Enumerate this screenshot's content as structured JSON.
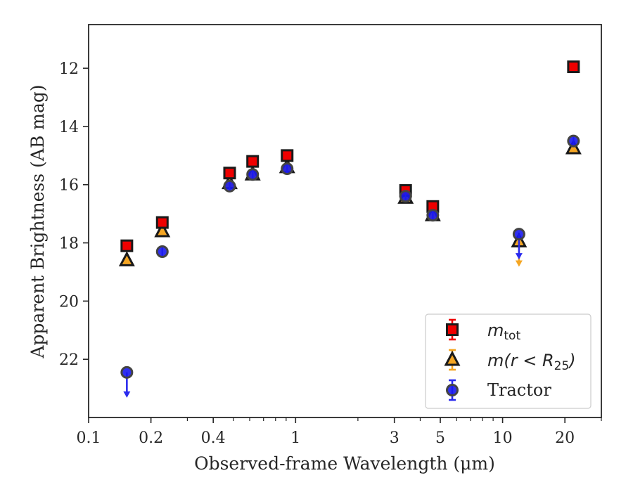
{
  "chart_data": {
    "type": "scatter",
    "xscale": "log",
    "yaxis_inverted": true,
    "xlim": [
      0.1,
      30
    ],
    "ylim": [
      24,
      10.5
    ],
    "xlabel": "Observed-frame Wavelength (μm)",
    "ylabel": "Apparent Brightness (AB mag)",
    "x_ticks": [
      0.1,
      0.2,
      0.4,
      1,
      3,
      5,
      10,
      20
    ],
    "x_tick_labels": [
      "0.1",
      "0.2",
      "0.4",
      "1",
      "3",
      "5",
      "10",
      "20"
    ],
    "y_ticks": [
      12,
      14,
      16,
      18,
      20,
      22
    ],
    "y_tick_labels": [
      "12",
      "14",
      "16",
      "18",
      "20",
      "22"
    ],
    "legend_position": "lower right",
    "series": [
      {
        "name": "m_tot",
        "label_main": "m",
        "label_sub": "tot",
        "marker": "square",
        "fill": "#ee0000",
        "edge": "#1a1a1a",
        "errcolor": "#ee0000",
        "x": [
          0.153,
          0.227,
          0.48,
          0.62,
          0.91,
          3.4,
          4.6,
          22.0
        ],
        "y": [
          18.1,
          17.3,
          15.6,
          15.2,
          15.0,
          16.2,
          16.75,
          11.95
        ]
      },
      {
        "name": "m(r < R25)",
        "label_main": "m(r < R",
        "label_sub": "25",
        "label_end": ")",
        "marker": "triangle",
        "fill": "#f5a623",
        "edge": "#1a1a1a",
        "errcolor": "#f5a623",
        "x": [
          0.153,
          0.227,
          0.48,
          0.62,
          0.91,
          3.4,
          4.6,
          12.0,
          22.0
        ],
        "y": [
          18.6,
          17.6,
          15.95,
          15.65,
          15.4,
          16.45,
          17.05,
          17.95,
          14.75
        ],
        "upper_limit": [
          false,
          false,
          false,
          false,
          false,
          false,
          false,
          true,
          false
        ]
      },
      {
        "name": "Tractor",
        "marker": "circle",
        "fill": "#1a1aee",
        "edge": "#444444",
        "errcolor": "#2a2aee",
        "x": [
          0.153,
          0.227,
          0.48,
          0.62,
          0.91,
          3.4,
          4.6,
          12.0,
          22.0
        ],
        "y": [
          22.45,
          18.3,
          16.05,
          15.65,
          15.45,
          16.4,
          17.05,
          17.7,
          14.5
        ],
        "upper_limit": [
          true,
          false,
          false,
          false,
          false,
          false,
          false,
          true,
          false
        ]
      }
    ]
  }
}
